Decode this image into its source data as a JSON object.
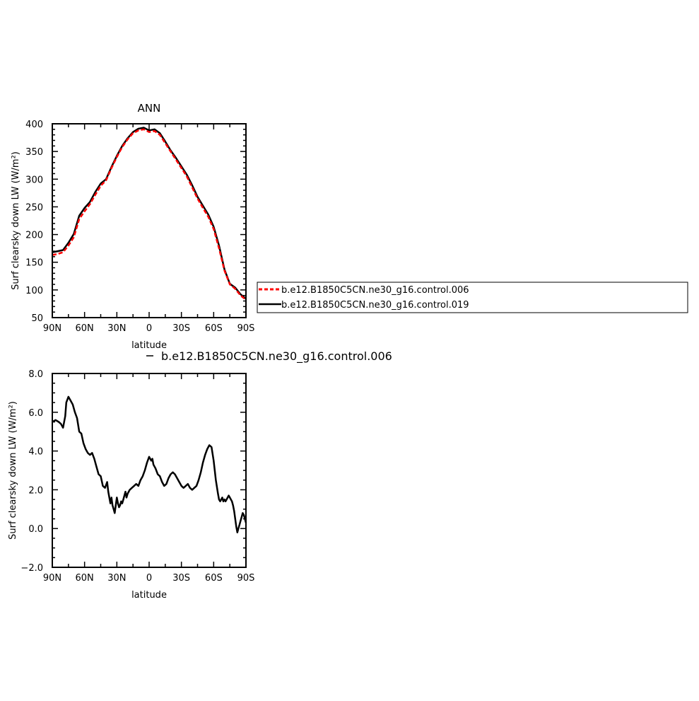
{
  "chart_data": [
    {
      "type": "line",
      "title": "ANN",
      "xlabel": "latitude",
      "ylabel": "Surf clearsky down LW (W/m²)",
      "xlim": [
        90,
        -90
      ],
      "ylim": [
        50,
        400
      ],
      "x_ticks": [
        90,
        60,
        30,
        0,
        -30,
        -60,
        -90
      ],
      "x_tick_labels": [
        "90N",
        "60N",
        "30N",
        "0",
        "30S",
        "60S",
        "90S"
      ],
      "y_ticks": [
        50,
        100,
        150,
        200,
        250,
        300,
        350,
        400
      ],
      "y_tick_labels": [
        "50",
        "100",
        "150",
        "200",
        "250",
        "300",
        "350",
        "400"
      ],
      "legend_placement": "right",
      "series": [
        {
          "name": "b.e12.B1850C5CN.ne30_g16.control.006",
          "color": "#ff0000",
          "dash": "dashed",
          "x": [
            90,
            85,
            80,
            75,
            70,
            65,
            60,
            55,
            50,
            45,
            40,
            35,
            30,
            25,
            20,
            15,
            10,
            5,
            0,
            -5,
            -10,
            -15,
            -20,
            -25,
            -30,
            -35,
            -40,
            -45,
            -50,
            -55,
            -60,
            -65,
            -70,
            -75,
            -80,
            -85,
            -90
          ],
          "y": [
            163,
            165,
            168,
            180,
            195,
            228,
            242,
            255,
            272,
            288,
            298,
            320,
            340,
            358,
            372,
            383,
            388,
            390,
            385,
            387,
            380,
            365,
            350,
            335,
            320,
            305,
            285,
            265,
            248,
            232,
            210,
            175,
            135,
            110,
            102,
            90,
            82
          ]
        },
        {
          "name": "b.e12.B1850C5CN.ne30_g16.control.019",
          "color": "#000000",
          "dash": "solid",
          "x": [
            90,
            85,
            80,
            75,
            70,
            65,
            60,
            55,
            50,
            45,
            40,
            35,
            30,
            25,
            20,
            15,
            10,
            5,
            0,
            -5,
            -10,
            -15,
            -20,
            -25,
            -30,
            -35,
            -40,
            -45,
            -50,
            -55,
            -60,
            -65,
            -70,
            -75,
            -80,
            -85,
            -90
          ],
          "y": [
            168,
            170,
            172,
            185,
            201,
            234,
            248,
            259,
            277,
            292,
            300,
            322,
            342,
            360,
            374,
            385,
            391,
            393,
            388,
            390,
            383,
            368,
            352,
            338,
            323,
            308,
            289,
            268,
            252,
            236,
            214,
            180,
            137,
            111,
            104,
            92,
            84
          ]
        }
      ]
    },
    {
      "type": "line",
      "title": "b.e12.B1850C5CN.ne30_g16.control.006",
      "xlabel": "latitude",
      "ylabel": "Surf clearsky down LW (W/m²)",
      "xlim": [
        90,
        -90
      ],
      "ylim": [
        -2,
        8
      ],
      "x_ticks": [
        90,
        60,
        30,
        0,
        -30,
        -60,
        -90
      ],
      "x_tick_labels": [
        "90N",
        "60N",
        "30N",
        "0",
        "30S",
        "60S",
        "90S"
      ],
      "y_ticks": [
        -2,
        0,
        2,
        4,
        6,
        8
      ],
      "y_tick_labels": [
        "−2.0",
        "0.0",
        "2.0",
        "4.0",
        "6.0",
        "8.0"
      ],
      "series": [
        {
          "color": "#000000",
          "dash": "solid",
          "x": [
            90,
            87,
            84,
            82,
            80,
            78,
            77,
            75,
            73,
            71,
            69,
            67,
            65,
            63,
            61,
            59,
            57,
            55,
            53,
            51,
            49,
            47,
            45,
            43,
            41,
            39,
            38,
            37,
            36,
            35,
            34,
            33,
            32,
            31,
            30,
            29,
            28,
            27,
            26,
            25,
            24,
            23,
            22,
            21,
            20,
            18,
            16,
            14,
            12,
            10,
            8,
            6,
            4,
            2,
            0,
            -2,
            -3,
            -4,
            -6,
            -8,
            -10,
            -12,
            -14,
            -16,
            -18,
            -20,
            -22,
            -24,
            -26,
            -28,
            -30,
            -32,
            -34,
            -36,
            -38,
            -40,
            -42,
            -44,
            -46,
            -48,
            -50,
            -52,
            -54,
            -56,
            -58,
            -60,
            -62,
            -64,
            -65,
            -66,
            -67,
            -68,
            -69,
            -70,
            -71,
            -72,
            -73,
            -74,
            -75,
            -76,
            -77,
            -78,
            -79,
            -80,
            -81,
            -82,
            -83,
            -84,
            -85,
            -86,
            -87,
            -88,
            -89,
            -90
          ],
          "y": [
            5.5,
            5.6,
            5.5,
            5.4,
            5.2,
            5.8,
            6.5,
            6.8,
            6.6,
            6.4,
            6.0,
            5.7,
            5.0,
            4.9,
            4.4,
            4.1,
            3.9,
            3.8,
            3.9,
            3.6,
            3.2,
            2.8,
            2.7,
            2.2,
            2.1,
            2.4,
            1.9,
            1.6,
            1.3,
            1.6,
            1.2,
            1.0,
            0.8,
            1.2,
            1.6,
            1.3,
            1.1,
            1.2,
            1.4,
            1.3,
            1.5,
            1.7,
            1.9,
            1.6,
            1.8,
            2.0,
            2.1,
            2.2,
            2.3,
            2.2,
            2.5,
            2.7,
            3.0,
            3.4,
            3.7,
            3.5,
            3.6,
            3.3,
            3.1,
            2.8,
            2.7,
            2.4,
            2.2,
            2.3,
            2.6,
            2.8,
            2.9,
            2.8,
            2.6,
            2.4,
            2.2,
            2.1,
            2.2,
            2.3,
            2.1,
            2.0,
            2.1,
            2.2,
            2.5,
            2.9,
            3.4,
            3.8,
            4.1,
            4.3,
            4.2,
            3.5,
            2.5,
            1.8,
            1.5,
            1.4,
            1.5,
            1.6,
            1.4,
            1.5,
            1.4,
            1.5,
            1.6,
            1.7,
            1.6,
            1.5,
            1.4,
            1.2,
            0.9,
            0.5,
            0.1,
            -0.2,
            0.0,
            0.2,
            0.4,
            0.6,
            0.8,
            0.7,
            0.5,
            0.3
          ]
        }
      ]
    }
  ]
}
